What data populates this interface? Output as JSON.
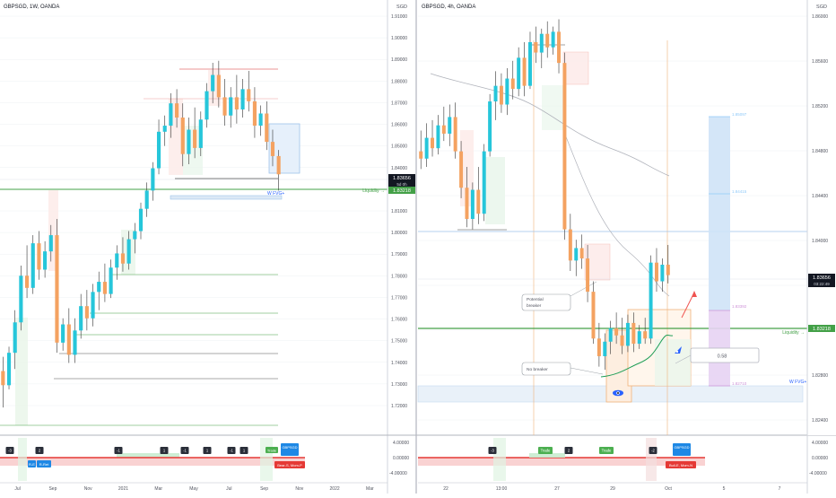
{
  "colors": {
    "up": "#26c6da",
    "down": "#f4a261",
    "grid": "#eef0f3",
    "axis_text": "#50535e",
    "liquidity": "#43a047",
    "price_badge": "#131722",
    "ma_gray": "#b0b3bb",
    "ma_green": "#1e9e57",
    "target_blue": "#cfe3f7",
    "stop_purple": "#e7d3f3",
    "fvg": "#dce9f6",
    "trade_green": "#4caf50",
    "signal_red": "#e53935",
    "signal_blue": "#1e88e5",
    "osc_red": "#f8c7c7",
    "osc_green": "#c9ecd0",
    "tag_dark": "#2a2e39"
  },
  "left_chart": {
    "title": "GBPSGD, 1W, OANDA",
    "currency": "SGD",
    "price_labels": [
      "1.91000",
      "1.90000",
      "1.89000",
      "1.88000",
      "1.87000",
      "1.86000",
      "1.85000",
      "1.84000",
      "1.82000",
      "1.81000",
      "1.80000",
      "1.79000",
      "1.78000",
      "1.77000",
      "1.76000",
      "1.75000",
      "1.74000",
      "1.73000",
      "1.72000"
    ],
    "x_labels": [
      "Jul",
      "Sep",
      "Nov",
      "2021",
      "Mar",
      "May",
      "Jul",
      "Sep",
      "Nov",
      "2022",
      "Mar"
    ],
    "current_price": "1.83656",
    "countdown": "5d 0h",
    "liquidity_label": "Liquidity →",
    "liquidity_price": "1.83218",
    "fvg_label": "W FVG+",
    "osc_tags": [
      "-3",
      "2",
      "-1",
      "1",
      "-1",
      "1",
      "-1",
      "1"
    ],
    "osc_green_tags": [
      "Trade"
    ],
    "osc_blue_tags": [
      "R-E",
      "R-Ret",
      "GBPSGD"
    ],
    "osc_red_tag": "Bear-S, Mom-P"
  },
  "right_chart": {
    "title": "GBPSGD, 4h, OANDA",
    "currency": "SGD",
    "price_labels": [
      "1.86000",
      "1.85600",
      "1.85200",
      "1.84800",
      "1.84400",
      "1.84000",
      "1.83600",
      "1.83200",
      "1.82800",
      "1.82400"
    ],
    "x_labels": [
      "22",
      "13:00",
      "27",
      "29",
      "Oct",
      "5",
      "7"
    ],
    "current_price": "1.83656",
    "countdown": "03:22:49",
    "liquidity_label": "Liquidity →",
    "liquidity_price": "1.83218",
    "fvg_label": "W FVG+",
    "callout_potential": "Potential\nbreaker",
    "callout_nobreaker": "No breaker",
    "rr_label": "0.58",
    "target_levels": [
      "1.85097",
      "1.84415",
      "1.83392",
      "1.82710"
    ],
    "osc_tags": [
      "-3",
      "Trade",
      "2",
      "Trade",
      "-2"
    ],
    "osc_blue_tags": [
      "GBPSGD"
    ],
    "osc_red_tag": "Bull-E, Mom-N"
  },
  "osc_scale": [
    "4.00000",
    "0.00000",
    "-4.00000"
  ],
  "chart_data": [
    {
      "type": "candlestick",
      "title": "GBPSGD, 1W, OANDA",
      "timeframe": "1W",
      "ylabel": "SGD",
      "ylim": [
        1.715,
        1.915
      ],
      "x_ticks": [
        "Jul",
        "Sep",
        "Nov",
        "2021",
        "Mar",
        "May",
        "Jul",
        "Sep",
        "Nov",
        "2022",
        "Mar"
      ],
      "last_price": 1.83656,
      "levels": [
        {
          "name": "Liquidity",
          "price": 1.83218
        },
        {
          "price": 1.787
        },
        {
          "price": 1.775
        },
        {
          "price": 1.765
        },
        {
          "price": 1.745
        },
        {
          "price": 1.733
        }
      ],
      "candles": [
        {
          "o": 1.74,
          "h": 1.747,
          "l": 1.722,
          "c": 1.733
        },
        {
          "o": 1.733,
          "h": 1.752,
          "l": 1.731,
          "c": 1.749
        },
        {
          "o": 1.749,
          "h": 1.77,
          "l": 1.741,
          "c": 1.764
        },
        {
          "o": 1.764,
          "h": 1.792,
          "l": 1.76,
          "c": 1.787
        },
        {
          "o": 1.787,
          "h": 1.802,
          "l": 1.776,
          "c": 1.781
        },
        {
          "o": 1.781,
          "h": 1.807,
          "l": 1.778,
          "c": 1.803
        },
        {
          "o": 1.803,
          "h": 1.809,
          "l": 1.785,
          "c": 1.79
        },
        {
          "o": 1.79,
          "h": 1.804,
          "l": 1.786,
          "c": 1.799
        },
        {
          "o": 1.799,
          "h": 1.812,
          "l": 1.794,
          "c": 1.807
        },
        {
          "o": 1.807,
          "h": 1.815,
          "l": 1.749,
          "c": 1.754
        },
        {
          "o": 1.754,
          "h": 1.766,
          "l": 1.75,
          "c": 1.763
        },
        {
          "o": 1.763,
          "h": 1.771,
          "l": 1.744,
          "c": 1.748
        },
        {
          "o": 1.748,
          "h": 1.766,
          "l": 1.744,
          "c": 1.76
        },
        {
          "o": 1.76,
          "h": 1.778,
          "l": 1.756,
          "c": 1.772
        },
        {
          "o": 1.772,
          "h": 1.78,
          "l": 1.76,
          "c": 1.766
        },
        {
          "o": 1.766,
          "h": 1.783,
          "l": 1.762,
          "c": 1.779
        },
        {
          "o": 1.779,
          "h": 1.789,
          "l": 1.77,
          "c": 1.784
        },
        {
          "o": 1.784,
          "h": 1.793,
          "l": 1.774,
          "c": 1.778
        },
        {
          "o": 1.778,
          "h": 1.795,
          "l": 1.776,
          "c": 1.791
        },
        {
          "o": 1.791,
          "h": 1.802,
          "l": 1.785,
          "c": 1.798
        },
        {
          "o": 1.798,
          "h": 1.806,
          "l": 1.789,
          "c": 1.793
        },
        {
          "o": 1.793,
          "h": 1.809,
          "l": 1.79,
          "c": 1.805
        },
        {
          "o": 1.805,
          "h": 1.813,
          "l": 1.798,
          "c": 1.809
        },
        {
          "o": 1.809,
          "h": 1.823,
          "l": 1.805,
          "c": 1.82
        },
        {
          "o": 1.82,
          "h": 1.833,
          "l": 1.816,
          "c": 1.829
        },
        {
          "o": 1.829,
          "h": 1.843,
          "l": 1.824,
          "c": 1.84
        },
        {
          "o": 1.84,
          "h": 1.864,
          "l": 1.837,
          "c": 1.858
        },
        {
          "o": 1.858,
          "h": 1.866,
          "l": 1.851,
          "c": 1.861
        },
        {
          "o": 1.861,
          "h": 1.877,
          "l": 1.855,
          "c": 1.872
        },
        {
          "o": 1.872,
          "h": 1.879,
          "l": 1.86,
          "c": 1.865
        },
        {
          "o": 1.865,
          "h": 1.872,
          "l": 1.841,
          "c": 1.847
        },
        {
          "o": 1.847,
          "h": 1.865,
          "l": 1.842,
          "c": 1.859
        },
        {
          "o": 1.859,
          "h": 1.87,
          "l": 1.845,
          "c": 1.85
        },
        {
          "o": 1.85,
          "h": 1.868,
          "l": 1.846,
          "c": 1.864
        },
        {
          "o": 1.864,
          "h": 1.882,
          "l": 1.86,
          "c": 1.878
        },
        {
          "o": 1.878,
          "h": 1.892,
          "l": 1.872,
          "c": 1.886
        },
        {
          "o": 1.886,
          "h": 1.893,
          "l": 1.87,
          "c": 1.875
        },
        {
          "o": 1.875,
          "h": 1.884,
          "l": 1.861,
          "c": 1.866
        },
        {
          "o": 1.866,
          "h": 1.88,
          "l": 1.86,
          "c": 1.875
        },
        {
          "o": 1.875,
          "h": 1.886,
          "l": 1.862,
          "c": 1.869
        },
        {
          "o": 1.869,
          "h": 1.884,
          "l": 1.865,
          "c": 1.879
        },
        {
          "o": 1.879,
          "h": 1.888,
          "l": 1.868,
          "c": 1.873
        },
        {
          "o": 1.873,
          "h": 1.88,
          "l": 1.855,
          "c": 1.861
        },
        {
          "o": 1.861,
          "h": 1.871,
          "l": 1.856,
          "c": 1.867
        },
        {
          "o": 1.867,
          "h": 1.873,
          "l": 1.849,
          "c": 1.853
        },
        {
          "o": 1.853,
          "h": 1.859,
          "l": 1.841,
          "c": 1.846
        },
        {
          "o": 1.846,
          "h": 1.849,
          "l": 1.829,
          "c": 1.837
        }
      ]
    },
    {
      "type": "candlestick",
      "title": "GBPSGD, 4h, OANDA",
      "timeframe": "4h",
      "ylabel": "SGD",
      "ylim": [
        1.8225,
        1.8615
      ],
      "x_ticks": [
        "22",
        "13:00",
        "27",
        "29",
        "Oct",
        "5",
        "7"
      ],
      "last_price": 1.83656,
      "levels": [
        {
          "name": "Liquidity",
          "price": 1.83218
        },
        {
          "price": 1.841
        }
      ],
      "targets": [
        1.85097,
        1.84415,
        1.83392,
        1.8271
      ],
      "risk_reward": 0.58,
      "candles": [
        {
          "o": 1.8485,
          "h": 1.8505,
          "l": 1.8468,
          "c": 1.8478
        },
        {
          "o": 1.8478,
          "h": 1.8512,
          "l": 1.847,
          "c": 1.8498
        },
        {
          "o": 1.8498,
          "h": 1.8515,
          "l": 1.848,
          "c": 1.8488
        },
        {
          "o": 1.8488,
          "h": 1.852,
          "l": 1.8482,
          "c": 1.851
        },
        {
          "o": 1.851,
          "h": 1.8528,
          "l": 1.8495,
          "c": 1.8502
        },
        {
          "o": 1.8502,
          "h": 1.853,
          "l": 1.849,
          "c": 1.8518
        },
        {
          "o": 1.8518,
          "h": 1.8532,
          "l": 1.8478,
          "c": 1.8485
        },
        {
          "o": 1.8485,
          "h": 1.8495,
          "l": 1.844,
          "c": 1.845
        },
        {
          "o": 1.845,
          "h": 1.847,
          "l": 1.8412,
          "c": 1.842
        },
        {
          "o": 1.842,
          "h": 1.8455,
          "l": 1.841,
          "c": 1.8448
        },
        {
          "o": 1.8448,
          "h": 1.847,
          "l": 1.8415,
          "c": 1.8425
        },
        {
          "o": 1.8425,
          "h": 1.8492,
          "l": 1.8418,
          "c": 1.8485
        },
        {
          "o": 1.8485,
          "h": 1.854,
          "l": 1.848,
          "c": 1.8533
        },
        {
          "o": 1.8533,
          "h": 1.8562,
          "l": 1.8515,
          "c": 1.8548
        },
        {
          "o": 1.8548,
          "h": 1.856,
          "l": 1.8522,
          "c": 1.853
        },
        {
          "o": 1.853,
          "h": 1.8565,
          "l": 1.852,
          "c": 1.8555
        },
        {
          "o": 1.8555,
          "h": 1.8572,
          "l": 1.8535,
          "c": 1.8545
        },
        {
          "o": 1.8545,
          "h": 1.8585,
          "l": 1.8538,
          "c": 1.8575
        },
        {
          "o": 1.8575,
          "h": 1.859,
          "l": 1.8538,
          "c": 1.8548
        },
        {
          "o": 1.8548,
          "h": 1.86,
          "l": 1.8545,
          "c": 1.859
        },
        {
          "o": 1.859,
          "h": 1.8605,
          "l": 1.857,
          "c": 1.858
        },
        {
          "o": 1.858,
          "h": 1.8603,
          "l": 1.8565,
          "c": 1.8598
        },
        {
          "o": 1.8598,
          "h": 1.861,
          "l": 1.8575,
          "c": 1.8585
        },
        {
          "o": 1.8585,
          "h": 1.8605,
          "l": 1.8578,
          "c": 1.86
        },
        {
          "o": 1.86,
          "h": 1.8612,
          "l": 1.856,
          "c": 1.857
        },
        {
          "o": 1.857,
          "h": 1.858,
          "l": 1.84,
          "c": 1.841
        },
        {
          "o": 1.841,
          "h": 1.8425,
          "l": 1.837,
          "c": 1.838
        },
        {
          "o": 1.838,
          "h": 1.84,
          "l": 1.8365,
          "c": 1.8392
        },
        {
          "o": 1.8392,
          "h": 1.8405,
          "l": 1.8372,
          "c": 1.8382
        },
        {
          "o": 1.8382,
          "h": 1.8395,
          "l": 1.834,
          "c": 1.835
        },
        {
          "o": 1.835,
          "h": 1.836,
          "l": 1.83,
          "c": 1.8305
        },
        {
          "o": 1.8305,
          "h": 1.832,
          "l": 1.8278,
          "c": 1.8288
        },
        {
          "o": 1.8288,
          "h": 1.831,
          "l": 1.8275,
          "c": 1.8302
        },
        {
          "o": 1.8302,
          "h": 1.8322,
          "l": 1.829,
          "c": 1.8315
        },
        {
          "o": 1.8315,
          "h": 1.833,
          "l": 1.83,
          "c": 1.8308
        },
        {
          "o": 1.8308,
          "h": 1.8325,
          "l": 1.829,
          "c": 1.8298
        },
        {
          "o": 1.8298,
          "h": 1.8328,
          "l": 1.8292,
          "c": 1.832
        },
        {
          "o": 1.832,
          "h": 1.833,
          "l": 1.8292,
          "c": 1.83
        },
        {
          "o": 1.83,
          "h": 1.8318,
          "l": 1.8295,
          "c": 1.8312
        },
        {
          "o": 1.8312,
          "h": 1.8325,
          "l": 1.83,
          "c": 1.8305
        },
        {
          "o": 1.8305,
          "h": 1.8385,
          "l": 1.83,
          "c": 1.8378
        },
        {
          "o": 1.8378,
          "h": 1.8392,
          "l": 1.835,
          "c": 1.836
        },
        {
          "o": 1.836,
          "h": 1.8382,
          "l": 1.835,
          "c": 1.8376
        },
        {
          "o": 1.8376,
          "h": 1.8395,
          "l": 1.8358,
          "c": 1.8366
        }
      ]
    }
  ]
}
